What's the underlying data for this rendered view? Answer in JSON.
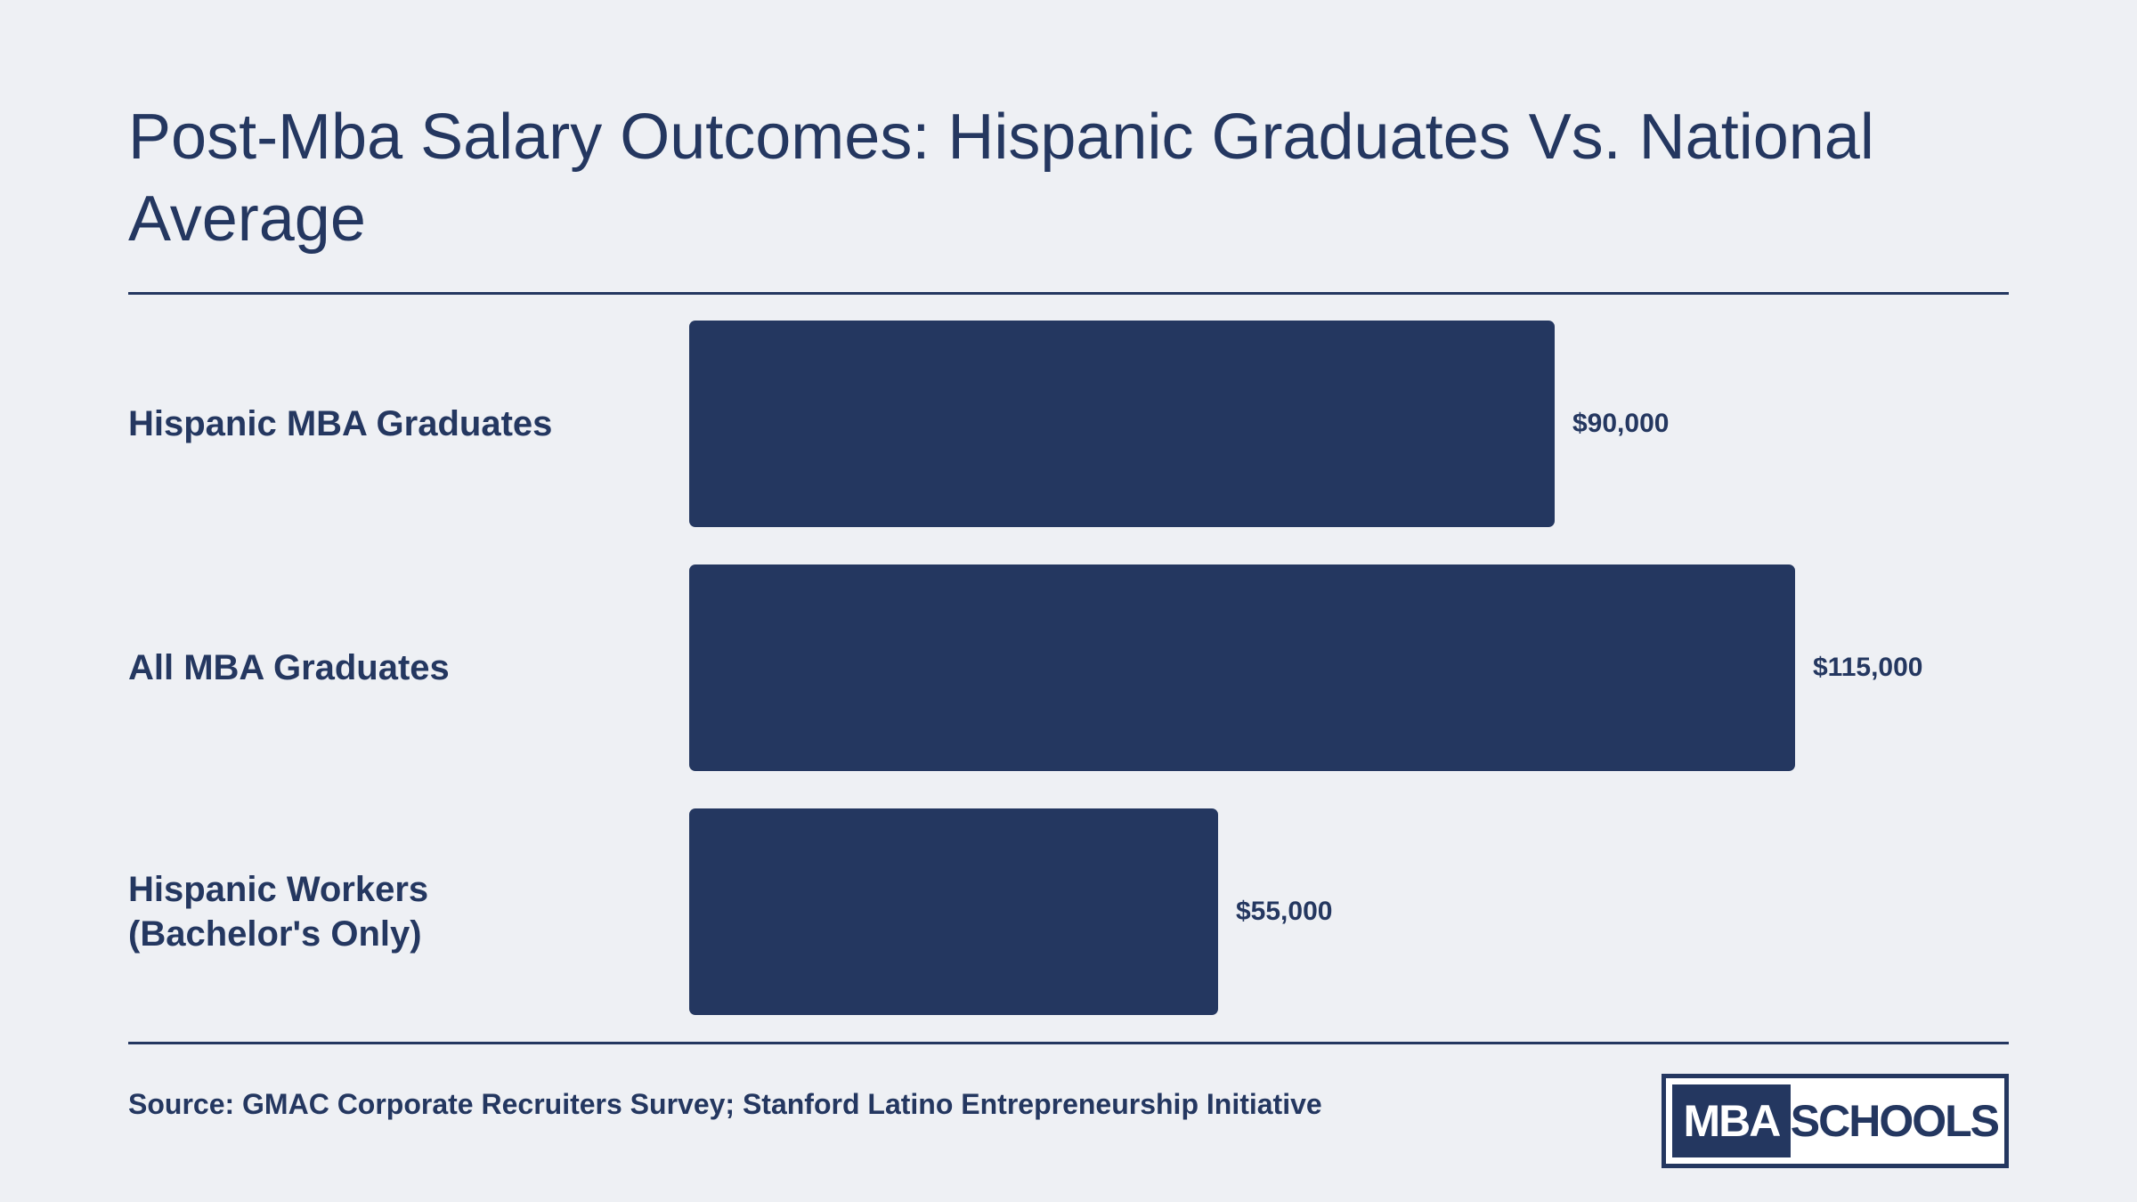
{
  "title": "Post-Mba Salary Outcomes: Hispanic Graduates Vs. National Average",
  "source": "Source: GMAC Corporate Recruiters Survey; Stanford Latino Entrepreneurship Initiative",
  "logo": {
    "left_text": "MBA",
    "right_text": "SCHOOLS"
  },
  "colors": {
    "bar": "#243760",
    "background": "#eef0f4",
    "text": "#243760"
  },
  "chart_data": {
    "type": "bar",
    "orientation": "horizontal",
    "title": "Post-Mba Salary Outcomes: Hispanic Graduates Vs. National Average",
    "categories": [
      "Hispanic MBA Graduates",
      "All MBA Graduates",
      "Hispanic Workers\n(Bachelor's Only)"
    ],
    "values": [
      90000,
      115000,
      55000
    ],
    "value_labels": [
      "$90,000",
      "$115,000",
      "$55,000"
    ],
    "xlim": [
      0,
      115000
    ],
    "xlabel": "",
    "ylabel": "",
    "grid": false,
    "legend": "none"
  }
}
